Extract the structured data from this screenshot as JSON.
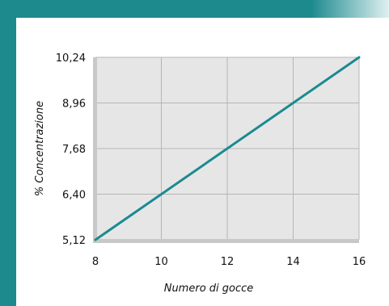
{
  "colors": {
    "frame": "#1d8a8e",
    "plot_background": "#e6e6e6",
    "grid": "#b5b5b5",
    "axis_shadow": "#c8c8c8",
    "line": "#1b8a91"
  },
  "chart_data": {
    "type": "line",
    "xlabel": "Numero di gocce",
    "ylabel": "% Concentrazione",
    "xlim": [
      8,
      16
    ],
    "ylim": [
      5.12,
      10.24
    ],
    "x_ticks": [
      8,
      10,
      12,
      14,
      16
    ],
    "y_ticks": [
      5.12,
      6.4,
      7.68,
      8.96,
      10.24
    ],
    "x_tick_labels": [
      "8",
      "10",
      "12",
      "14",
      "16"
    ],
    "y_tick_labels": [
      "5,12",
      "6,40",
      "7,68",
      "8,96",
      "10,24"
    ],
    "grid": true,
    "series": [
      {
        "x": [
          8,
          16
        ],
        "y": [
          5.12,
          10.24
        ]
      }
    ]
  }
}
